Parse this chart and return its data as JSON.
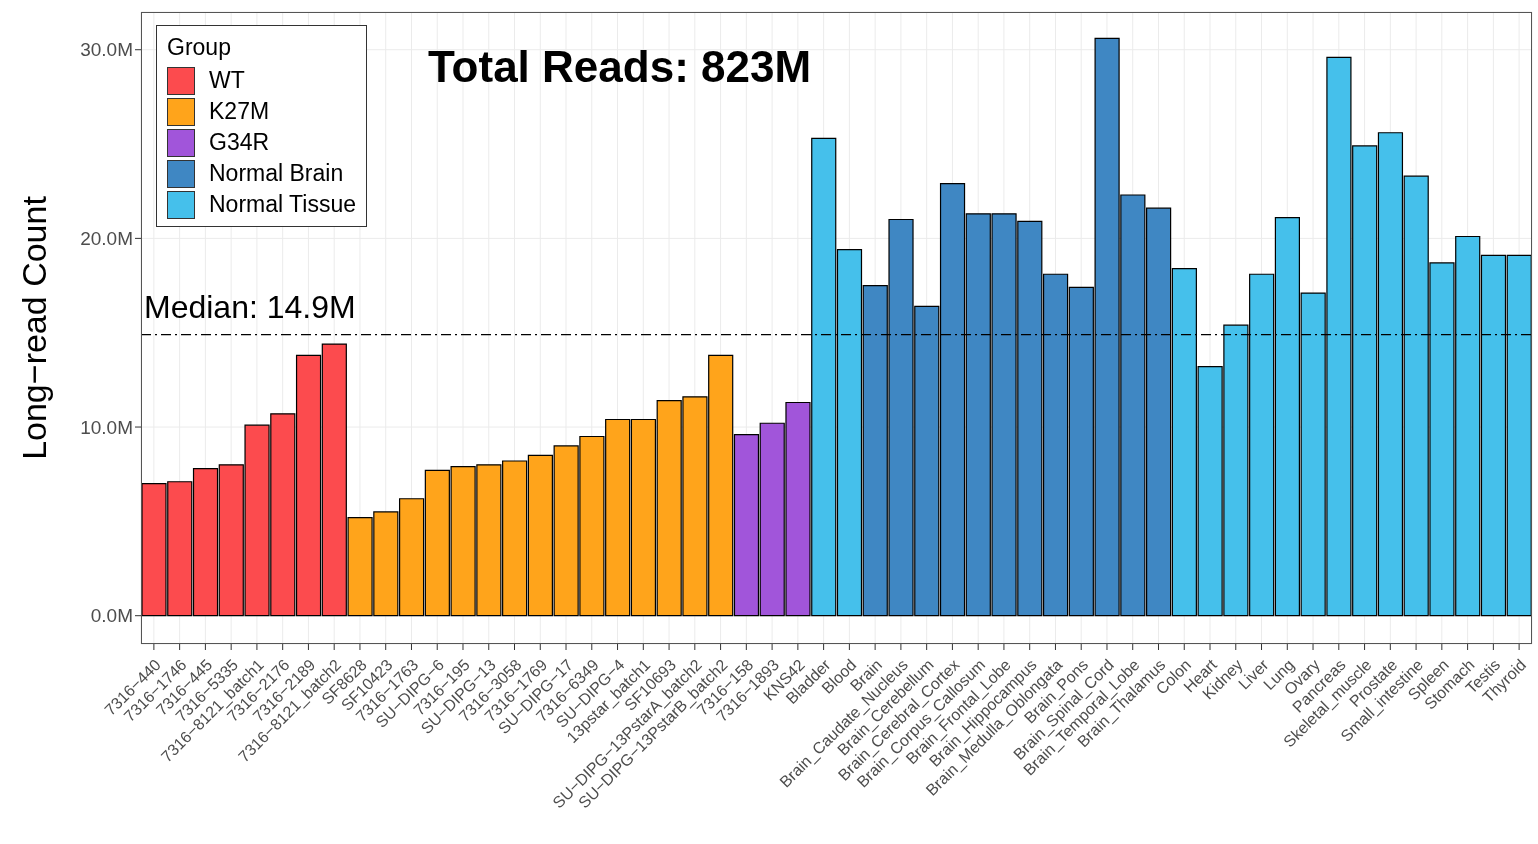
{
  "chart_data": {
    "type": "bar",
    "ylabel": "Long−read Count",
    "annotations": [
      "Total Reads: 823M"
    ],
    "categories": [
      "7316−440",
      "7316−1746",
      "7316−445",
      "7316−5335",
      "7316−8121_batch1",
      "7316−2176",
      "7316−2189",
      "7316−8121_batch2",
      "SF8628",
      "SF10423",
      "7316−1763",
      "SU−DIPG−6",
      "7316−195",
      "SU−DIPG−13",
      "7316−3058",
      "7316−1769",
      "SU−DIPG−17",
      "7316−6349",
      "SU−DIPG−4",
      "13pstar_batch1",
      "SF10693",
      "SU−DIPG−13PstarA_batch2",
      "SU−DIPG−13PstarB_batch2",
      "7316−158",
      "7316−1893",
      "KNS42",
      "Bladder",
      "Blood",
      "Brain",
      "Brain_Caudate_Nucleus",
      "Brain_Cerebellum",
      "Brain_Cerebral_Cortex",
      "Brain_Corpus_Callosum",
      "Brain_Frontal_Lobe",
      "Brain_Hippocampus",
      "Brain_Medulla_Oblongata",
      "Brain_Pons",
      "Brain_Spinal_Cord",
      "Brain_Temporal_Lobe",
      "Brain_Thalamus",
      "Colon",
      "Heart",
      "Kidney",
      "Liver",
      "Lung",
      "Ovary",
      "Pancreas",
      "Skeletal_muscle",
      "Prostate",
      "Small_intestine",
      "Spleen",
      "Stomach",
      "Testis",
      "Thyroid"
    ],
    "legend_title": "Group",
    "series": [
      {
        "name": "WT",
        "color": "#fc4b4e",
        "values": [
          7.0,
          7.1,
          7.8,
          8.0,
          10.1,
          10.7,
          13.8,
          14.4,
          null,
          null,
          null,
          null,
          null,
          null,
          null,
          null,
          null,
          null,
          null,
          null,
          null,
          null,
          null,
          null,
          null,
          null,
          null,
          null,
          null,
          null,
          null,
          null,
          null,
          null,
          null,
          null,
          null,
          null,
          null,
          null,
          null,
          null,
          null,
          null,
          null,
          null,
          null,
          null,
          null,
          null,
          null,
          null,
          null,
          null
        ]
      },
      {
        "name": "K27M",
        "color": "#ffa41b",
        "values": [
          null,
          null,
          null,
          null,
          null,
          null,
          null,
          null,
          5.2,
          5.5,
          6.2,
          7.7,
          7.9,
          8.0,
          8.2,
          8.5,
          9.0,
          9.5,
          10.4,
          10.4,
          11.4,
          11.6,
          13.8,
          null,
          null,
          null,
          null,
          null,
          null,
          null,
          null,
          null,
          null,
          null,
          null,
          null,
          null,
          null,
          null,
          null,
          null,
          null,
          null,
          null,
          null,
          null,
          null,
          null,
          null,
          null,
          null,
          null,
          null,
          null
        ]
      },
      {
        "name": "G34R",
        "color": "#a155da",
        "values": [
          null,
          null,
          null,
          null,
          null,
          null,
          null,
          null,
          null,
          null,
          null,
          null,
          null,
          null,
          null,
          null,
          null,
          null,
          null,
          null,
          null,
          null,
          null,
          9.6,
          10.2,
          11.3,
          null,
          null,
          null,
          null,
          null,
          null,
          null,
          null,
          null,
          null,
          null,
          null,
          null,
          null,
          null,
          null,
          null,
          null,
          null,
          null,
          null,
          null,
          null,
          null,
          null,
          null,
          null,
          null
        ]
      },
      {
        "name": "Normal Brain",
        "color": "#3f87c3",
        "values": [
          null,
          null,
          null,
          null,
          null,
          null,
          null,
          null,
          null,
          null,
          null,
          null,
          null,
          null,
          null,
          null,
          null,
          null,
          null,
          null,
          null,
          null,
          null,
          null,
          null,
          null,
          null,
          null,
          17.5,
          21.0,
          16.4,
          22.9,
          21.3,
          21.3,
          20.9,
          18.1,
          17.4,
          30.6,
          22.3,
          21.6,
          null,
          null,
          null,
          null,
          null,
          null,
          null,
          null,
          null,
          null,
          null,
          null,
          null,
          null
        ]
      },
      {
        "name": "Normal Tissue",
        "color": "#45c0eb",
        "values": [
          null,
          null,
          null,
          null,
          null,
          null,
          null,
          null,
          null,
          null,
          null,
          null,
          null,
          null,
          null,
          null,
          null,
          null,
          null,
          null,
          null,
          null,
          null,
          null,
          null,
          null,
          25.3,
          19.4,
          null,
          null,
          null,
          null,
          null,
          null,
          null,
          null,
          null,
          null,
          null,
          null,
          18.4,
          13.2,
          15.4,
          18.1,
          21.1,
          17.1,
          29.6,
          24.9,
          25.6,
          23.3,
          18.7,
          20.1,
          19.1,
          19.1
        ]
      }
    ],
    "ylim": [
      -1.5,
      32
    ],
    "yticks": [
      {
        "value": 0,
        "label": "0.0M"
      },
      {
        "value": 10,
        "label": "10.0M"
      },
      {
        "value": 20,
        "label": "20.0M"
      },
      {
        "value": 30,
        "label": "30.0M"
      }
    ],
    "ref_lines": [
      {
        "axis": "y",
        "value": 14.9,
        "label": "Median: 14.9M",
        "color": "#000000",
        "line_style": "dashdot"
      }
    ],
    "grid": true,
    "legend": "top left"
  }
}
